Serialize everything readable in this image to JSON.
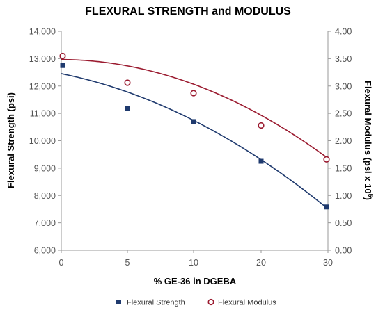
{
  "chart_data": {
    "type": "scatter",
    "title": "FLEXURAL STRENGTH and MODULUS",
    "xlabel": "% GE-36 in DGEBA",
    "ylabel_left": "Flexural Strength (psi)",
    "ylabel_right_main": "Flexural Modulus (psi x 10",
    "ylabel_right_sup": "5",
    "ylabel_right_end": ")",
    "x_categories": [
      "0",
      "5",
      "10",
      "20",
      "30"
    ],
    "y_left": {
      "range": [
        6000,
        14000
      ],
      "ticks": [
        "14,000",
        "13,000",
        "12,000",
        "11,000",
        "10,000",
        "9,000",
        "8,000",
        "7,000",
        "6,000"
      ],
      "tick_values": [
        14000,
        13000,
        12000,
        11000,
        10000,
        9000,
        8000,
        7000,
        6000
      ]
    },
    "y_right": {
      "range": [
        0,
        4
      ],
      "ticks": [
        "4.00",
        "3.50",
        "3.00",
        "2.50",
        "2.00",
        "1.50",
        "1.00",
        "0.50",
        "0.00"
      ],
      "tick_values": [
        4.0,
        3.5,
        3.0,
        2.5,
        2.0,
        1.5,
        1.0,
        0.5,
        0.0
      ]
    },
    "series": [
      {
        "name": "Flexural Strength",
        "axis": "left",
        "marker": "square",
        "color": "#1f3a6e",
        "x": [
          "0",
          "5",
          "10",
          "20",
          "30"
        ],
        "y": [
          12750,
          11170,
          10700,
          9250,
          7580
        ],
        "trendline": {
          "kind": "quadratic",
          "y": [
            12500,
            11650,
            10850,
            9300,
            7500
          ]
        }
      },
      {
        "name": "Flexural Modulus",
        "axis": "right",
        "marker": "circle",
        "color": "#9b1b30",
        "x": [
          "0",
          "5",
          "10",
          "20",
          "30"
        ],
        "y": [
          3.55,
          3.06,
          2.87,
          2.28,
          1.66
        ],
        "trendline": {
          "kind": "quadratic",
          "y": [
            3.5,
            3.32,
            3.08,
            2.45,
            1.68
          ]
        }
      }
    ],
    "grid": false,
    "legend": "bottom"
  }
}
